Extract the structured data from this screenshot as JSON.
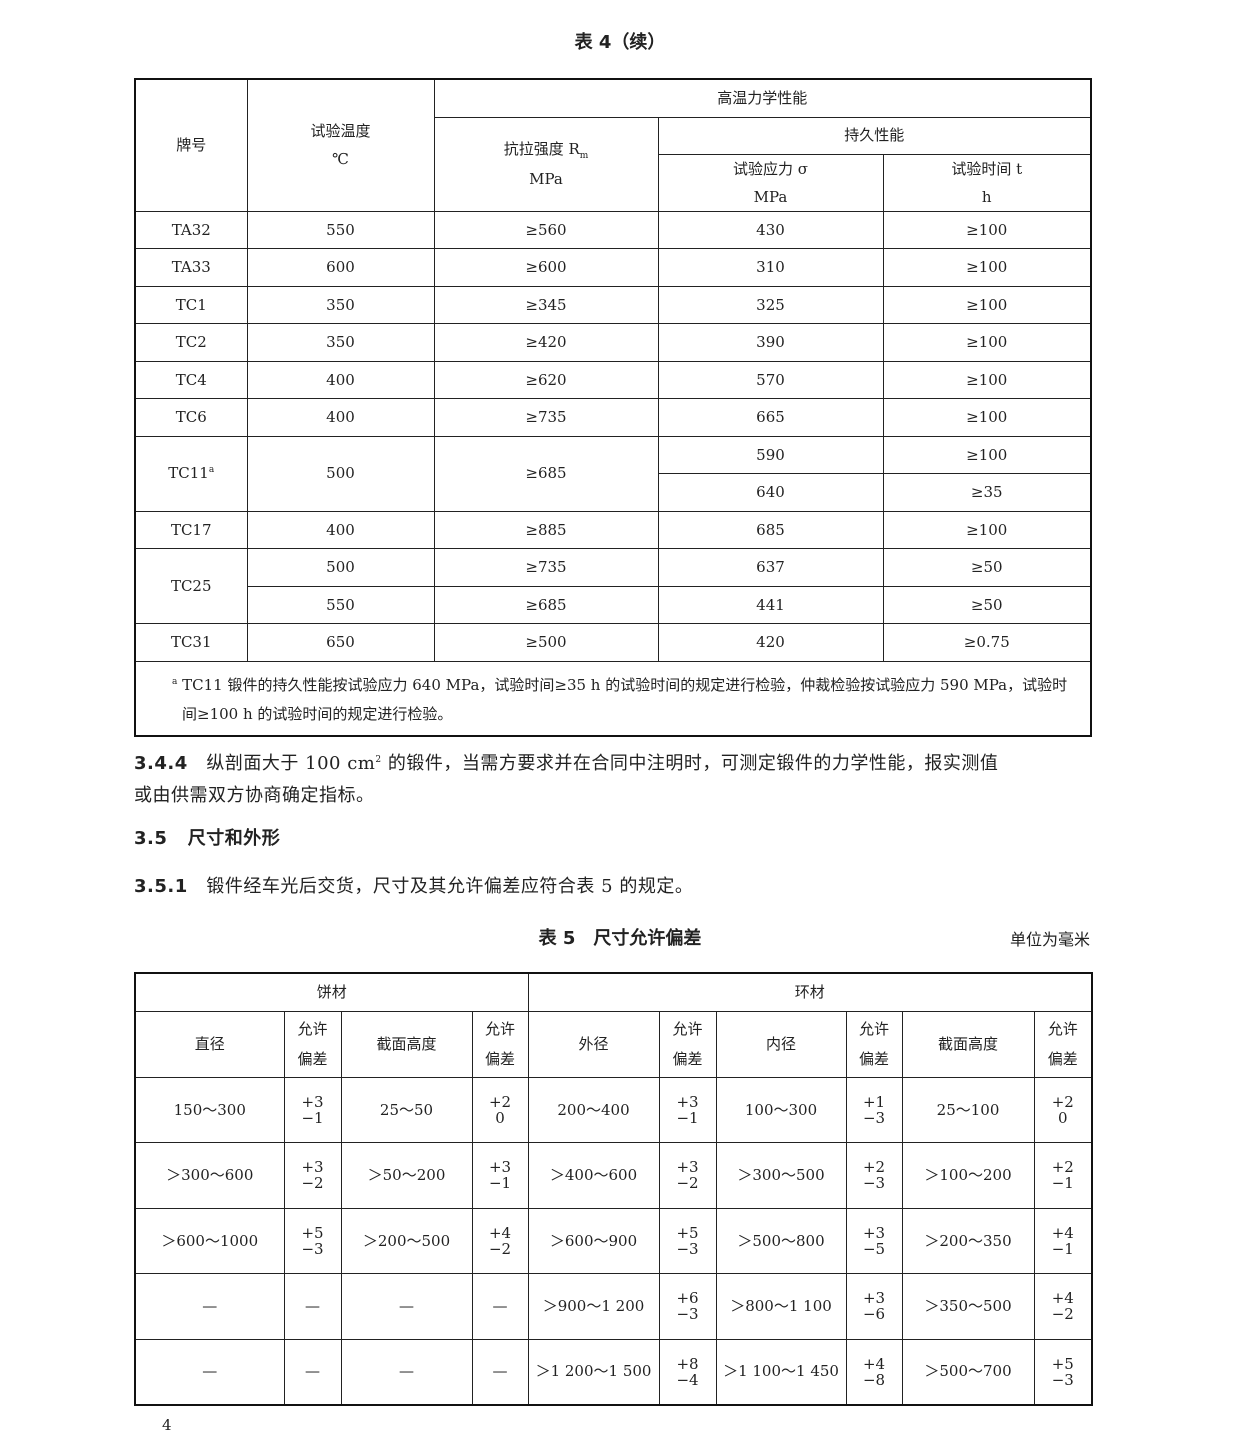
{
  "table4": {
    "caption": "表 4（续）",
    "headers": {
      "grade": "牌号",
      "temp": "试验温度",
      "temp_unit": "℃",
      "group": "高温力学性能",
      "tensile": "抗拉强度 R",
      "tensile_sub": "m",
      "tensile_unit": "MPa",
      "endurance": "持久性能",
      "stress": "试验应力 σ",
      "stress_unit": "MPa",
      "time": "试验时间 t",
      "time_unit": "h"
    },
    "rows": [
      {
        "grade": "TA32",
        "temp": "550",
        "rm": "≥560",
        "sub": [
          {
            "stress": "430",
            "time": "≥100"
          }
        ]
      },
      {
        "grade": "TA33",
        "temp": "600",
        "rm": "≥600",
        "sub": [
          {
            "stress": "310",
            "time": "≥100"
          }
        ]
      },
      {
        "grade": "TC1",
        "temp": "350",
        "rm": "≥345",
        "sub": [
          {
            "stress": "325",
            "time": "≥100"
          }
        ]
      },
      {
        "grade": "TC2",
        "temp": "350",
        "rm": "≥420",
        "sub": [
          {
            "stress": "390",
            "time": "≥100"
          }
        ]
      },
      {
        "grade": "TC4",
        "temp": "400",
        "rm": "≥620",
        "sub": [
          {
            "stress": "570",
            "time": "≥100"
          }
        ]
      },
      {
        "grade": "TC6",
        "temp": "400",
        "rm": "≥735",
        "sub": [
          {
            "stress": "665",
            "time": "≥100"
          }
        ]
      },
      {
        "grade": "TC11",
        "note": "a",
        "temp": "500",
        "rm": "≥685",
        "sub": [
          {
            "stress": "590",
            "time": "≥100"
          },
          {
            "stress": "640",
            "time": "≥35"
          }
        ]
      },
      {
        "grade": "TC17",
        "temp": "400",
        "rm": "≥885",
        "sub": [
          {
            "stress": "685",
            "time": "≥100"
          }
        ]
      },
      {
        "grade": "TC25",
        "sub": [
          {
            "temp": "500",
            "rm": "≥735",
            "stress": "637",
            "time": "≥50"
          },
          {
            "temp": "550",
            "rm": "≥685",
            "stress": "441",
            "time": "≥50"
          }
        ]
      },
      {
        "grade": "TC31",
        "temp": "650",
        "rm": "≥500",
        "sub": [
          {
            "stress": "420",
            "time": "≥0.75"
          }
        ]
      }
    ],
    "footnote_mark": "a",
    "footnote": "TC11 锻件的持久性能按试验应力 640 MPa，试验时间≥35 h 的试验时间的规定进行检验，仲裁检验按试验应力 590 MPa，试验时间≥100 h 的试验时间的规定进行检验。"
  },
  "para_344": {
    "num": "3.4.4",
    "text1": "纵剖面大于 100 cm",
    "sup": "2",
    "text2": " 的锻件，当需方要求并在合同中注明时，可测定锻件的力学性能，报实测值",
    "text3": "或由供需双方协商确定指标。"
  },
  "section_35": {
    "num": "3.5",
    "title": "尺寸和外形"
  },
  "para_351": {
    "num": "3.5.1",
    "text": "锻件经车光后交货，尺寸及其允许偏差应符合表 5 的规定。"
  },
  "table5": {
    "caption": "表 5　尺寸允许偏差",
    "unit": "单位为毫米",
    "group_cake": "饼材",
    "group_ring": "环材",
    "headers": [
      "直径",
      "允许偏差",
      "截面高度",
      "允许偏差",
      "外径",
      "允许偏差",
      "内径",
      "允许偏差",
      "截面高度",
      "允许偏差"
    ],
    "rows": [
      [
        "150～300",
        [
          "+3",
          "−1"
        ],
        "25～50",
        [
          "+2",
          "0"
        ],
        "200～400",
        [
          "+3",
          "−1"
        ],
        "100～300",
        [
          "+1",
          "−3"
        ],
        "25～100",
        [
          "+2",
          "0"
        ]
      ],
      [
        "＞300～600",
        [
          "+3",
          "−2"
        ],
        "＞50～200",
        [
          "+3",
          "−1"
        ],
        "＞400～600",
        [
          "+3",
          "−2"
        ],
        "＞300～500",
        [
          "+2",
          "−3"
        ],
        "＞100～200",
        [
          "+2",
          "−1"
        ]
      ],
      [
        "＞600～1000",
        [
          "+5",
          "−3"
        ],
        "＞200～500",
        [
          "+4",
          "−2"
        ],
        "＞600～900",
        [
          "+5",
          "−3"
        ],
        "＞500～800",
        [
          "+3",
          "−5"
        ],
        "＞200～350",
        [
          "+4",
          "−1"
        ]
      ],
      [
        "—",
        "—",
        "—",
        "—",
        "＞900～1 200",
        [
          "+6",
          "−3"
        ],
        "＞800～1 100",
        [
          "+3",
          "−6"
        ],
        "＞350～500",
        [
          "+4",
          "−2"
        ]
      ],
      [
        "—",
        "—",
        "—",
        "—",
        "＞1 200～1 500",
        [
          "+8",
          "−4"
        ],
        "＞1 100～1 450",
        [
          "+4",
          "−8"
        ],
        "＞500～700",
        [
          "+5",
          "−3"
        ]
      ]
    ]
  },
  "page_number": "4"
}
